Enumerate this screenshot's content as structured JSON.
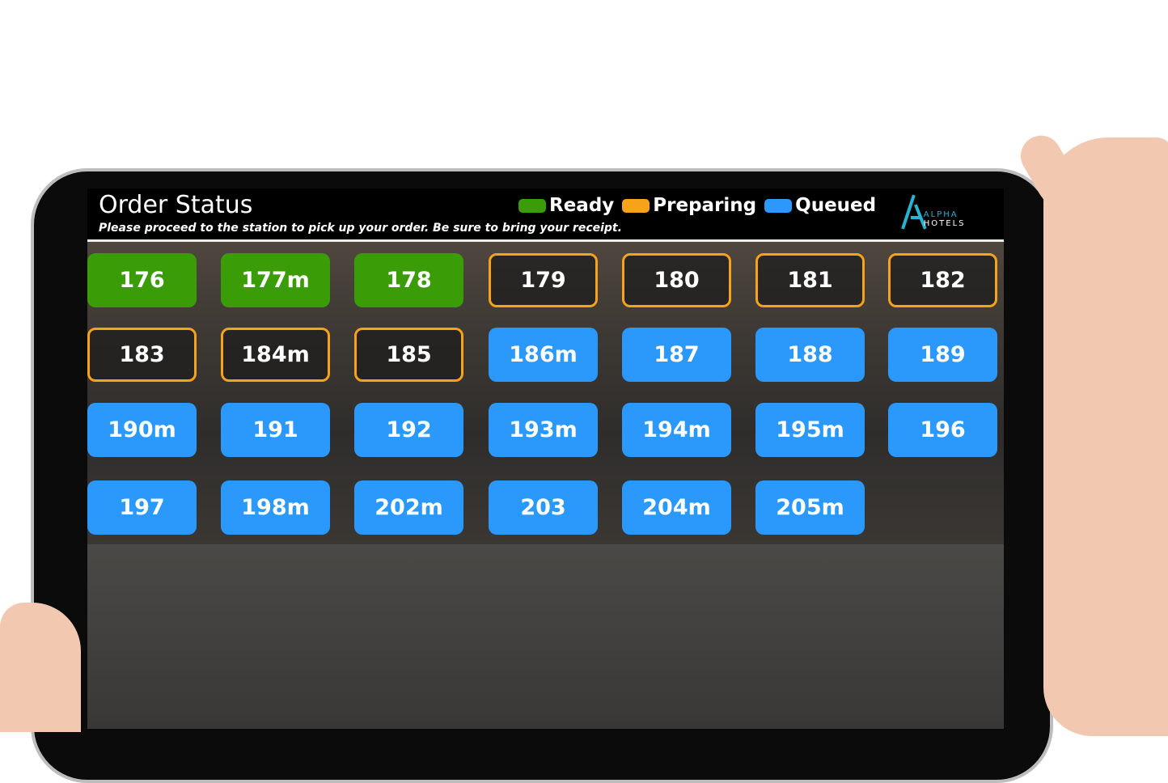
{
  "header": {
    "title": "Order Status",
    "subtitle": "Please proceed to the station to pick up your order. Be sure to bring your receipt."
  },
  "legend": [
    {
      "label": "Ready",
      "color": "#3a9d08"
    },
    {
      "label": "Preparing",
      "color": "#f7a21b"
    },
    {
      "label": "Queued",
      "color": "#2b98fb"
    }
  ],
  "logo": {
    "word1": "ALPHA",
    "word2": "HOTELS"
  },
  "orders": [
    {
      "number": "176",
      "status": "ready"
    },
    {
      "number": "177m",
      "status": "ready"
    },
    {
      "number": "178",
      "status": "ready"
    },
    {
      "number": "179",
      "status": "preparing"
    },
    {
      "number": "180",
      "status": "preparing"
    },
    {
      "number": "181",
      "status": "preparing"
    },
    {
      "number": "182",
      "status": "preparing"
    },
    {
      "number": "183",
      "status": "preparing"
    },
    {
      "number": "184m",
      "status": "preparing"
    },
    {
      "number": "185",
      "status": "preparing"
    },
    {
      "number": "186m",
      "status": "queued"
    },
    {
      "number": "187",
      "status": "queued"
    },
    {
      "number": "188",
      "status": "queued"
    },
    {
      "number": "189",
      "status": "queued"
    },
    {
      "number": "190m",
      "status": "queued"
    },
    {
      "number": "191",
      "status": "queued"
    },
    {
      "number": "192",
      "status": "queued"
    },
    {
      "number": "193m",
      "status": "queued"
    },
    {
      "number": "194m",
      "status": "queued"
    },
    {
      "number": "195m",
      "status": "queued"
    },
    {
      "number": "196",
      "status": "queued"
    },
    {
      "number": "197",
      "status": "queued"
    },
    {
      "number": "198m",
      "status": "queued"
    },
    {
      "number": "202m",
      "status": "queued"
    },
    {
      "number": "203",
      "status": "queued"
    },
    {
      "number": "204m",
      "status": "queued"
    },
    {
      "number": "205m",
      "status": "queued"
    }
  ]
}
